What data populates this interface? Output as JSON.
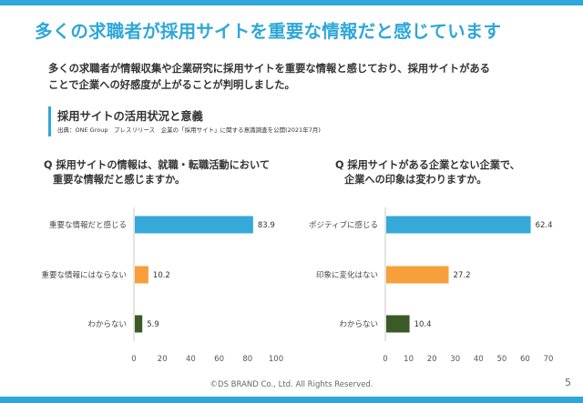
{
  "slide": {
    "title": "多くの求職者が採用サイトを重要な情報だと感じています",
    "lead_line1": "多くの求職者が情報収集や企業研究に採用サイトを重要な情報と感じており、採用サイトがある",
    "lead_line2": "ことで企業への好感度が上がることが判明しました。",
    "source_title": "採用サイトの活用状況と意義",
    "source_note": "出典：ONE Group　プレスリリース　企業の「採用サイト」に関する意識調査を公開(2021年7月)",
    "footer": "©DS BRAND Co., Ltd. All Rights Reserved.",
    "page_number": "5"
  },
  "questions": [
    {
      "line1": "Q 採用サイトの情報は、就職・転職活動において",
      "line2": "重要な情報だと感じますか。"
    },
    {
      "line1": "Q 採用サイトがある企業とない企業で、",
      "line2": "企業への印象は変わりますか。"
    }
  ],
  "chart_data": [
    {
      "type": "bar",
      "orientation": "horizontal",
      "categories": [
        "重要な情報だと感じる",
        "重要な情報にはならない",
        "わからない"
      ],
      "values": [
        83.9,
        10.2,
        5.9
      ],
      "value_labels": [
        "83.9",
        "10.2",
        "5.9"
      ],
      "colors": [
        "#35a9da",
        "#f7a03b",
        "#3b5a27"
      ],
      "xlim": [
        0,
        100
      ],
      "xticks": [
        "0",
        "20",
        "40",
        "60",
        "80",
        "100"
      ],
      "title": "",
      "xlabel": "",
      "ylabel": ""
    },
    {
      "type": "bar",
      "orientation": "horizontal",
      "categories": [
        "ポジティブに感じる",
        "印象に変化はない",
        "わからない"
      ],
      "values": [
        62.4,
        27.2,
        10.4
      ],
      "value_labels": [
        "62.4",
        "27.2",
        "10.4"
      ],
      "colors": [
        "#35a9da",
        "#f7a03b",
        "#3b5a27"
      ],
      "xlim": [
        0,
        70
      ],
      "xticks": [
        "0",
        "10",
        "20",
        "30",
        "40",
        "50",
        "60",
        "70"
      ],
      "title": "",
      "xlabel": "",
      "ylabel": ""
    }
  ]
}
